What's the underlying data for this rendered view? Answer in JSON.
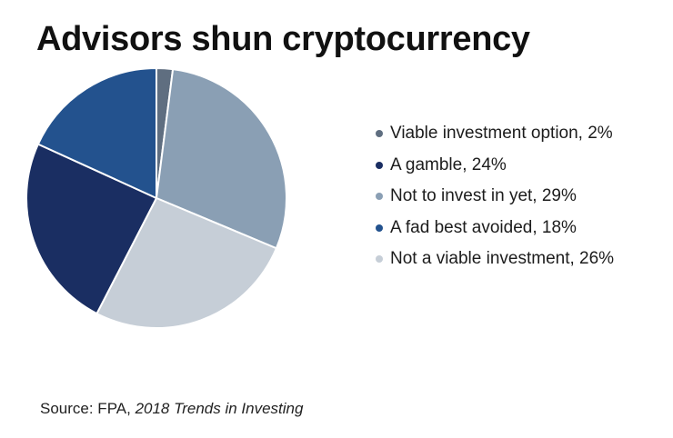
{
  "title": "Advisors shun cryptocurrency",
  "chart_data": {
    "type": "pie",
    "title": "Advisors shun cryptocurrency",
    "slices": [
      {
        "label": "Viable investment option, 2%",
        "value": 2,
        "color": "#5f6e80"
      },
      {
        "label": "Not to invest in yet, 29%",
        "value": 29,
        "color": "#8a9fb4"
      },
      {
        "label": "Not a viable investment, 26%",
        "value": 26,
        "color": "#c6ced7"
      },
      {
        "label": "A gamble, 24%",
        "value": 24,
        "color": "#1a2e62"
      },
      {
        "label": "A fad best avoided, 18%",
        "value": 18,
        "color": "#23528e"
      }
    ],
    "legend_order": [
      0,
      3,
      1,
      4,
      2
    ],
    "start": "top",
    "direction": "clockwise",
    "legend_position": "right"
  },
  "source": {
    "prefix": "Source: FPA, ",
    "publication": "2018 Trends in Investing"
  }
}
